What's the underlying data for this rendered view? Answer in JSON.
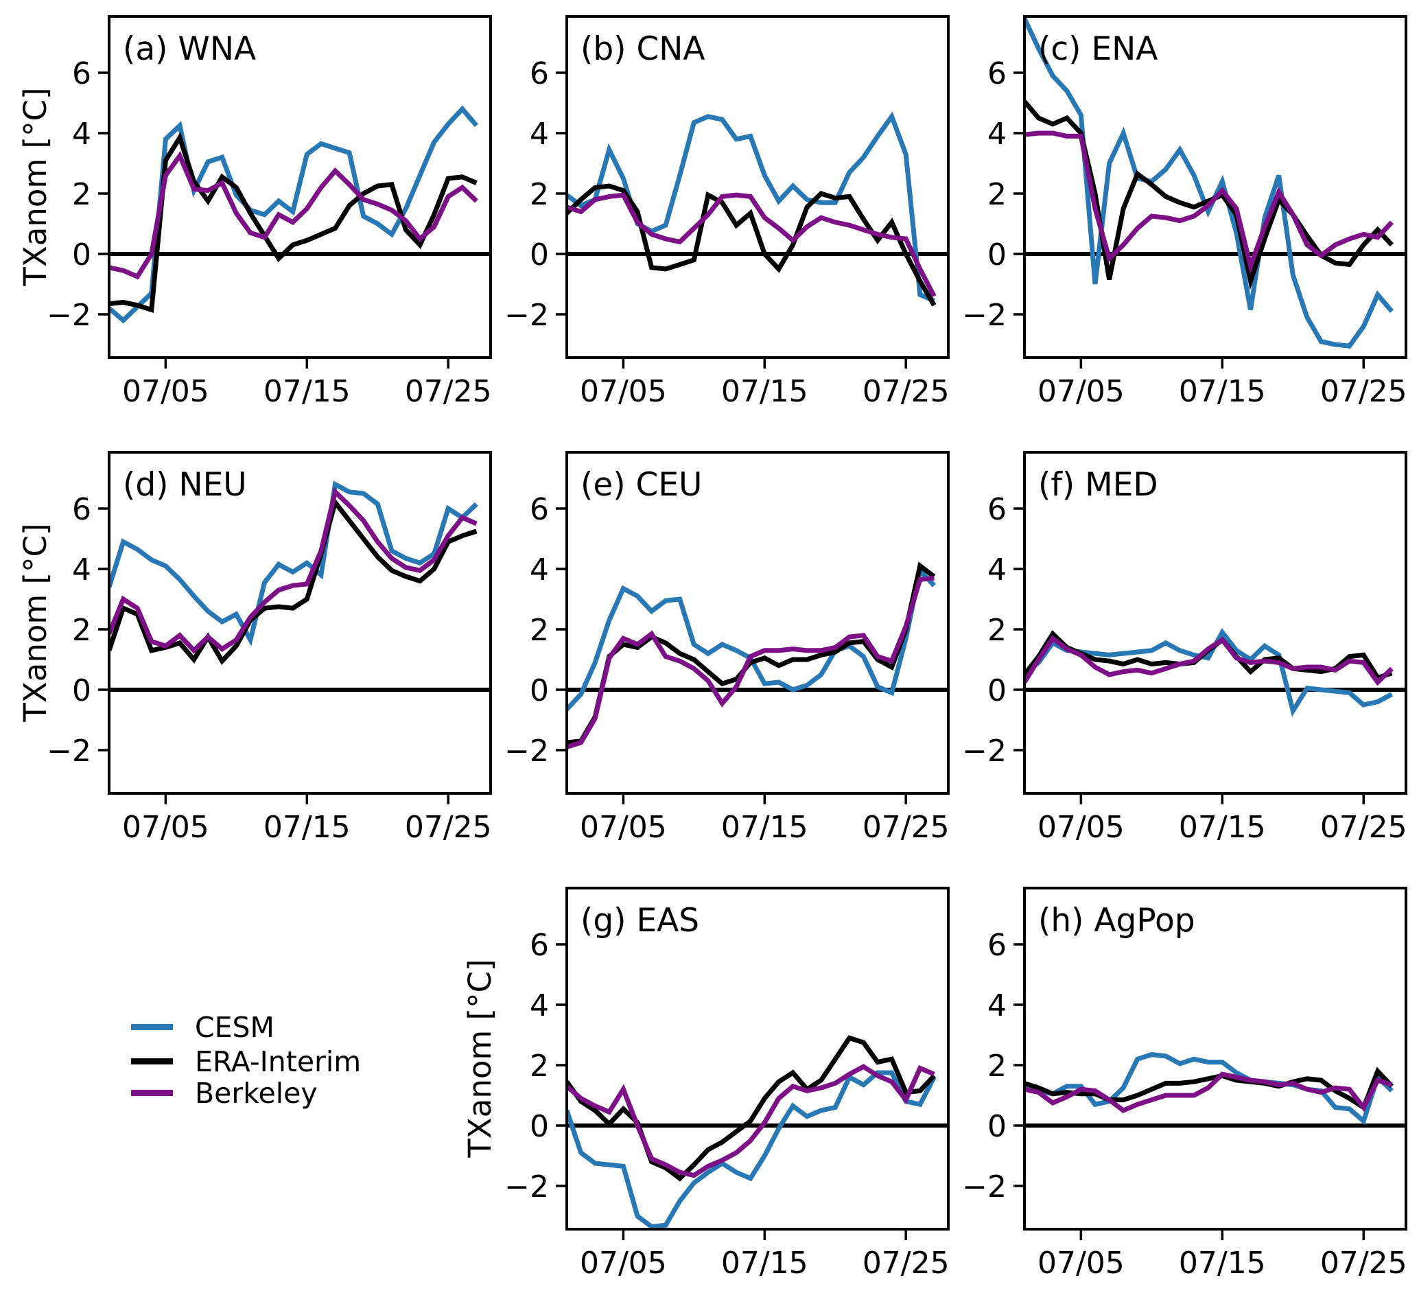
{
  "figure": {
    "kind": "multi-panel daily temperature anomaly time series",
    "background": "#ffffff"
  },
  "colors": {
    "cesm_blue": "#2878b5",
    "era_black": "#000000",
    "berkeley_purple": "#7d0f87",
    "axis": "#000000"
  },
  "legend": {
    "items": [
      {
        "label": "CESM",
        "color": "#2878b5"
      },
      {
        "label": "ERA-Interim",
        "color": "#000000"
      },
      {
        "label": "Berkeley",
        "color": "#7d0f87"
      }
    ]
  },
  "axes": {
    "ylabel": "TXanom [°C]",
    "ytick_values": [
      6,
      4,
      2,
      0,
      -2
    ],
    "ytick_labels": [
      "6",
      "4",
      "2",
      "0",
      "−2"
    ],
    "xtick_days": [
      5,
      15,
      25
    ],
    "xtick_labels": [
      "07/05",
      "07/15",
      "07/25"
    ],
    "xlim_days": [
      1,
      28
    ],
    "ylim": [
      -3.43,
      7.86
    ]
  },
  "chart_data": {
    "type": "line",
    "categories": [
      "07/01",
      "07/02",
      "07/03",
      "07/04",
      "07/05",
      "07/06",
      "07/07",
      "07/08",
      "07/09",
      "07/10",
      "07/11",
      "07/12",
      "07/13",
      "07/14",
      "07/15",
      "07/16",
      "07/17",
      "07/18",
      "07/19",
      "07/20",
      "07/21",
      "07/22",
      "07/23",
      "07/24",
      "07/25",
      "07/26",
      "07/27"
    ],
    "ylabel": "TXanom [°C]",
    "panels": [
      {
        "id": "a",
        "title": "(a) WNA",
        "series": [
          {
            "name": "CESM",
            "values": [
              -1.8,
              -2.2,
              -1.75,
              -1.3,
              3.8,
              4.25,
              2.1,
              3.05,
              3.2,
              1.95,
              1.45,
              1.3,
              1.75,
              1.4,
              3.3,
              3.65,
              3.5,
              3.35,
              1.25,
              1.0,
              0.65,
              1.5,
              2.6,
              3.7,
              4.3,
              4.8,
              4.25
            ]
          },
          {
            "name": "ERA-Interim",
            "values": [
              -1.65,
              -1.6,
              -1.7,
              -1.85,
              3.1,
              3.85,
              2.4,
              1.75,
              2.55,
              2.2,
              1.35,
              0.6,
              -0.15,
              0.3,
              0.45,
              0.65,
              0.85,
              1.6,
              2.0,
              2.25,
              2.3,
              0.8,
              0.3,
              1.3,
              2.5,
              2.55,
              2.35
            ]
          },
          {
            "name": "Berkeley",
            "values": [
              -0.45,
              -0.55,
              -0.75,
              0.0,
              2.6,
              3.25,
              2.15,
              2.1,
              2.35,
              1.35,
              0.7,
              0.55,
              1.3,
              1.05,
              1.5,
              2.2,
              2.75,
              2.3,
              1.8,
              1.65,
              1.45,
              1.1,
              0.5,
              0.9,
              1.9,
              2.2,
              1.75
            ]
          }
        ]
      },
      {
        "id": "b",
        "title": "(b) CNA",
        "series": [
          {
            "name": "CESM",
            "values": [
              1.95,
              1.6,
              1.8,
              3.45,
              2.5,
              1.0,
              0.75,
              0.95,
              2.6,
              4.35,
              4.55,
              4.45,
              3.8,
              3.9,
              2.6,
              1.75,
              2.25,
              1.8,
              1.7,
              1.7,
              2.7,
              3.2,
              3.9,
              4.55,
              3.3,
              -1.35,
              -1.55
            ]
          },
          {
            "name": "ERA-Interim",
            "values": [
              1.35,
              1.8,
              2.2,
              2.25,
              2.1,
              1.4,
              -0.45,
              -0.5,
              -0.35,
              -0.2,
              1.95,
              1.7,
              0.95,
              1.35,
              0.0,
              -0.5,
              0.3,
              1.55,
              2.0,
              1.85,
              1.9,
              1.15,
              0.45,
              1.05,
              0.0,
              -0.9,
              -1.7
            ]
          },
          {
            "name": "Berkeley",
            "values": [
              1.55,
              1.4,
              1.8,
              1.9,
              1.95,
              1.05,
              0.65,
              0.5,
              0.4,
              0.85,
              1.3,
              1.9,
              1.95,
              1.9,
              1.2,
              0.85,
              0.45,
              0.9,
              1.2,
              1.05,
              0.95,
              0.8,
              0.65,
              0.55,
              0.5,
              -0.5,
              -1.4
            ]
          }
        ]
      },
      {
        "id": "c",
        "title": "(c) ENA",
        "series": [
          {
            "name": "CESM",
            "values": [
              7.8,
              6.8,
              5.9,
              5.4,
              4.6,
              -1.0,
              3.0,
              4.0,
              2.5,
              2.4,
              2.8,
              3.45,
              2.6,
              1.4,
              2.4,
              0.7,
              -1.85,
              1.2,
              2.6,
              -0.7,
              -2.1,
              -2.9,
              -3.0,
              -3.05,
              -2.4,
              -1.35,
              -1.9
            ]
          },
          {
            "name": "ERA-Interim",
            "values": [
              5.05,
              4.5,
              4.3,
              4.5,
              4.0,
              2.0,
              -0.85,
              1.5,
              2.65,
              2.3,
              1.9,
              1.7,
              1.55,
              1.75,
              1.95,
              1.3,
              -0.9,
              0.5,
              1.8,
              1.3,
              0.6,
              -0.05,
              -0.3,
              -0.35,
              0.3,
              0.8,
              0.3
            ]
          },
          {
            "name": "Berkeley",
            "values": [
              3.95,
              4.0,
              4.0,
              3.9,
              3.9,
              1.5,
              -0.15,
              0.3,
              0.85,
              1.25,
              1.2,
              1.1,
              1.25,
              1.6,
              2.1,
              1.5,
              -0.4,
              0.9,
              2.05,
              1.3,
              0.3,
              -0.05,
              0.3,
              0.5,
              0.65,
              0.55,
              1.05
            ]
          }
        ]
      },
      {
        "id": "d",
        "title": "(d) NEU",
        "series": [
          {
            "name": "CESM",
            "values": [
              3.4,
              4.9,
              4.65,
              4.3,
              4.1,
              3.65,
              3.1,
              2.6,
              2.25,
              2.5,
              1.65,
              3.55,
              4.15,
              3.9,
              4.2,
              3.8,
              6.8,
              6.55,
              6.5,
              6.15,
              4.6,
              4.35,
              4.2,
              4.5,
              6.0,
              5.7,
              6.15
            ]
          },
          {
            "name": "ERA-Interim",
            "values": [
              1.3,
              2.7,
              2.5,
              1.3,
              1.4,
              1.55,
              1.0,
              1.75,
              0.95,
              1.45,
              2.3,
              2.7,
              2.75,
              2.7,
              3.0,
              4.5,
              6.2,
              5.6,
              5.0,
              4.4,
              3.95,
              3.75,
              3.6,
              4.0,
              4.9,
              5.1,
              5.25
            ]
          },
          {
            "name": "Berkeley",
            "values": [
              1.85,
              3.0,
              2.7,
              1.6,
              1.45,
              1.8,
              1.3,
              1.75,
              1.35,
              1.65,
              2.4,
              2.9,
              3.3,
              3.45,
              3.5,
              4.6,
              6.55,
              6.1,
              5.6,
              4.9,
              4.35,
              4.05,
              3.95,
              4.3,
              5.1,
              5.7,
              5.5
            ]
          }
        ]
      },
      {
        "id": "e",
        "title": "(e) CEU",
        "series": [
          {
            "name": "CESM",
            "values": [
              -0.65,
              -0.15,
              0.9,
              2.3,
              3.35,
              3.1,
              2.6,
              2.95,
              3.0,
              1.5,
              1.2,
              1.5,
              1.3,
              1.05,
              0.2,
              0.25,
              0.0,
              0.15,
              0.5,
              1.3,
              1.45,
              1.1,
              0.1,
              -0.1,
              1.7,
              3.95,
              3.45
            ]
          },
          {
            "name": "ERA-Interim",
            "values": [
              -1.75,
              -1.7,
              -0.9,
              1.1,
              1.5,
              1.4,
              1.75,
              1.55,
              1.2,
              1.0,
              0.6,
              0.2,
              0.35,
              0.9,
              1.05,
              0.8,
              1.0,
              1.0,
              1.15,
              1.25,
              1.55,
              1.6,
              1.0,
              0.75,
              2.0,
              4.1,
              3.75
            ]
          },
          {
            "name": "Berkeley",
            "values": [
              -1.9,
              -1.75,
              -0.95,
              1.05,
              1.7,
              1.5,
              1.85,
              1.1,
              0.95,
              0.7,
              0.3,
              -0.45,
              0.1,
              1.1,
              1.3,
              1.3,
              1.35,
              1.3,
              1.3,
              1.4,
              1.75,
              1.8,
              1.1,
              0.95,
              2.1,
              3.65,
              3.7
            ]
          }
        ]
      },
      {
        "id": "f",
        "title": "(f) MED",
        "series": [
          {
            "name": "CESM",
            "values": [
              0.55,
              0.9,
              1.55,
              1.3,
              1.25,
              1.2,
              1.15,
              1.2,
              1.25,
              1.3,
              1.55,
              1.3,
              1.15,
              1.05,
              1.9,
              1.3,
              1.0,
              1.45,
              1.15,
              -0.7,
              0.05,
              0.0,
              -0.05,
              -0.1,
              -0.5,
              -0.4,
              -0.15
            ]
          },
          {
            "name": "ERA-Interim",
            "values": [
              0.5,
              1.1,
              1.85,
              1.4,
              1.2,
              1.0,
              0.95,
              0.85,
              1.0,
              0.85,
              0.9,
              0.85,
              0.9,
              1.3,
              1.65,
              1.1,
              0.6,
              1.0,
              1.05,
              0.7,
              0.65,
              0.6,
              0.7,
              1.1,
              1.15,
              0.4,
              0.55
            ]
          },
          {
            "name": "Berkeley",
            "values": [
              0.25,
              1.0,
              1.7,
              1.35,
              1.15,
              0.75,
              0.5,
              0.6,
              0.65,
              0.55,
              0.7,
              0.85,
              0.95,
              1.35,
              1.65,
              1.05,
              0.9,
              0.95,
              0.9,
              0.7,
              0.75,
              0.75,
              0.65,
              0.95,
              0.9,
              0.25,
              0.7
            ]
          }
        ]
      },
      {
        "id": "g",
        "title": "(g) EAS",
        "series": [
          {
            "name": "CESM",
            "values": [
              0.5,
              -0.9,
              -1.25,
              -1.3,
              -1.35,
              -3.0,
              -3.35,
              -3.3,
              -2.5,
              -1.9,
              -1.55,
              -1.25,
              -1.55,
              -1.75,
              -1.0,
              -0.1,
              0.65,
              0.3,
              0.5,
              0.6,
              1.6,
              1.35,
              1.75,
              1.75,
              0.8,
              0.7,
              1.6
            ]
          },
          {
            "name": "ERA-Interim",
            "values": [
              1.45,
              0.8,
              0.5,
              0.05,
              0.55,
              0.1,
              -1.2,
              -1.4,
              -1.75,
              -1.3,
              -0.8,
              -0.55,
              -0.2,
              0.15,
              0.9,
              1.45,
              1.75,
              1.2,
              1.5,
              2.2,
              2.9,
              2.75,
              2.1,
              2.2,
              1.1,
              1.15,
              1.65
            ]
          },
          {
            "name": "Berkeley",
            "values": [
              1.3,
              0.9,
              0.65,
              0.45,
              1.2,
              0.0,
              -1.1,
              -1.3,
              -1.55,
              -1.65,
              -1.35,
              -1.15,
              -0.9,
              -0.5,
              0.1,
              0.9,
              1.3,
              1.15,
              1.25,
              1.4,
              1.7,
              1.95,
              1.65,
              1.45,
              0.85,
              1.9,
              1.7
            ]
          }
        ]
      },
      {
        "id": "h",
        "title": "(h) AgPop",
        "series": [
          {
            "name": "CESM",
            "values": [
              1.35,
              1.15,
              1.05,
              1.3,
              1.3,
              0.7,
              0.8,
              1.25,
              2.2,
              2.35,
              2.3,
              2.05,
              2.2,
              2.1,
              2.1,
              1.75,
              1.5,
              1.45,
              1.4,
              1.35,
              1.2,
              1.15,
              0.6,
              0.55,
              0.15,
              1.6,
              1.15
            ]
          },
          {
            "name": "ERA-Interim",
            "values": [
              1.4,
              1.25,
              1.05,
              1.1,
              1.05,
              1.05,
              0.85,
              0.85,
              1.0,
              1.2,
              1.4,
              1.4,
              1.45,
              1.55,
              1.65,
              1.5,
              1.45,
              1.4,
              1.3,
              1.45,
              1.55,
              1.5,
              1.15,
              0.9,
              0.6,
              1.8,
              1.3
            ]
          },
          {
            "name": "Berkeley",
            "values": [
              1.2,
              1.1,
              0.75,
              0.95,
              1.2,
              1.15,
              0.85,
              0.5,
              0.7,
              0.85,
              1.0,
              1.0,
              1.0,
              1.25,
              1.7,
              1.6,
              1.5,
              1.45,
              1.35,
              1.4,
              1.2,
              1.1,
              1.25,
              1.2,
              0.6,
              1.5,
              1.35
            ]
          }
        ]
      }
    ]
  }
}
